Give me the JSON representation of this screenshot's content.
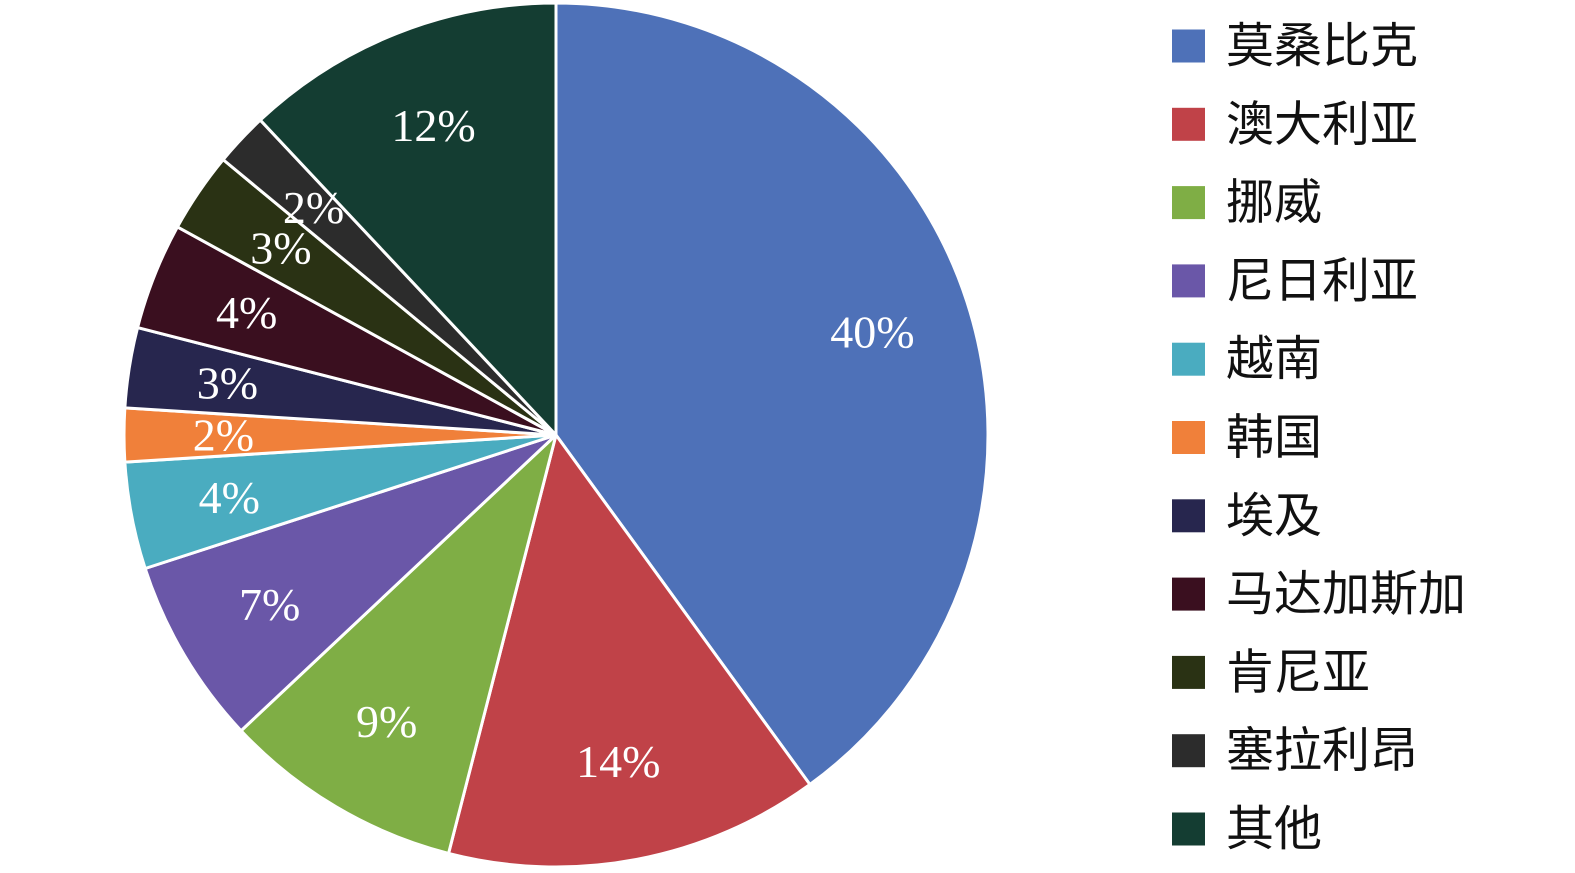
{
  "chart_data": {
    "type": "pie",
    "start_angle_deg": 0,
    "direction": "clockwise",
    "legend_position": "right",
    "slices": [
      {
        "name": "莫桑比克",
        "value": 40,
        "label": "40%",
        "color": "#4e71b8"
      },
      {
        "name": "澳大利亚",
        "value": 14,
        "label": "14%",
        "color": "#c04248"
      },
      {
        "name": "挪威",
        "value": 9,
        "label": "9%",
        "color": "#7fae45"
      },
      {
        "name": "尼日利亚",
        "value": 7,
        "label": "7%",
        "color": "#6a57a8"
      },
      {
        "name": "越南",
        "value": 4,
        "label": "4%",
        "color": "#4aacc0"
      },
      {
        "name": "韩国",
        "value": 2,
        "label": "2%",
        "color": "#f0803a"
      },
      {
        "name": "埃及",
        "value": 3,
        "label": "3%",
        "color": "#27264e"
      },
      {
        "name": "马达加斯加",
        "value": 4,
        "label": "4%",
        "color": "#3a0f1f"
      },
      {
        "name": "肯尼亚",
        "value": 3,
        "label": "3%",
        "color": "#2a3214"
      },
      {
        "name": "塞拉利昂",
        "value": 2,
        "label": "2%",
        "color": "#2c2c2c"
      },
      {
        "name": "其他",
        "value": 12,
        "label": "12%",
        "color": "#143d32"
      }
    ]
  }
}
